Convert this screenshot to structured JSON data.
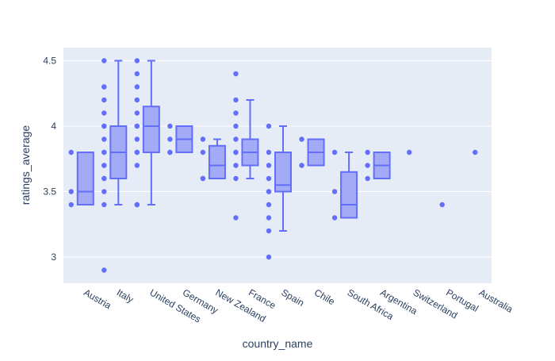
{
  "chart_data": {
    "type": "box",
    "title": "",
    "xlabel": "country_name",
    "ylabel": "ratings_average",
    "ylim": [
      2.8,
      4.6
    ],
    "yticks": [
      3,
      3.5,
      4,
      4.5
    ],
    "ytick_labels": [
      "3",
      "3.5",
      "4",
      "4.5"
    ],
    "grid": true,
    "legend": "none",
    "colors": {
      "plot_bg": "#e5ecf6",
      "grid": "#ffffff",
      "box_fill": "#a4abf6",
      "box_line": "#636efa",
      "point": "#636efa"
    },
    "categories": [
      "Austria",
      "Italy",
      "United States",
      "Germany",
      "New Zealand",
      "France",
      "Spain",
      "Chile",
      "South Africa",
      "Argentina",
      "Switzerland",
      "Portugal",
      "Australia"
    ],
    "boxes": [
      {
        "category": "Austria",
        "min": 3.4,
        "q1": 3.4,
        "median": 3.5,
        "q3": 3.8,
        "max": 3.8,
        "points": [
          3.8,
          3.5,
          3.4
        ]
      },
      {
        "category": "Italy",
        "min": 3.4,
        "q1": 3.6,
        "median": 3.8,
        "q3": 4.0,
        "max": 4.5,
        "points": [
          4.5,
          4.3,
          4.3,
          4.2,
          4.1,
          4.0,
          4.0,
          3.9,
          3.8,
          3.8,
          3.7,
          3.7,
          3.6,
          3.6,
          3.5,
          3.4,
          2.9
        ]
      },
      {
        "category": "United States",
        "min": 3.4,
        "q1": 3.8,
        "median": 4.0,
        "q3": 4.15,
        "max": 4.5,
        "points": [
          4.5,
          4.4,
          4.3,
          4.2,
          4.1,
          4.0,
          4.0,
          3.9,
          3.8,
          3.8,
          3.7,
          3.4,
          3.4
        ]
      },
      {
        "category": "Germany",
        "min": 3.8,
        "q1": 3.8,
        "median": 3.9,
        "q3": 4.0,
        "max": 4.0,
        "points": [
          4.0,
          3.9,
          3.8,
          3.8
        ]
      },
      {
        "category": "New Zealand",
        "min": 3.6,
        "q1": 3.6,
        "median": 3.7,
        "q3": 3.85,
        "max": 3.9,
        "points": [
          3.9,
          3.8,
          3.6,
          3.6
        ]
      },
      {
        "category": "France",
        "min": 3.6,
        "q1": 3.7,
        "median": 3.8,
        "q3": 3.9,
        "max": 4.2,
        "points": [
          4.4,
          4.2,
          4.1,
          4.0,
          3.9,
          3.8,
          3.8,
          3.7,
          3.6,
          3.3
        ]
      },
      {
        "category": "Spain",
        "min": 3.2,
        "q1": 3.5,
        "median": 3.55,
        "q3": 3.8,
        "max": 4.0,
        "points": [
          4.0,
          3.8,
          3.7,
          3.6,
          3.5,
          3.5,
          3.4,
          3.3,
          3.2,
          3.0
        ]
      },
      {
        "category": "Chile",
        "min": 3.7,
        "q1": 3.7,
        "median": 3.8,
        "q3": 3.9,
        "max": 3.9,
        "points": [
          3.9,
          3.7
        ]
      },
      {
        "category": "South Africa",
        "min": 3.3,
        "q1": 3.3,
        "median": 3.4,
        "q3": 3.65,
        "max": 3.8,
        "points": [
          3.8,
          3.5,
          3.3
        ]
      },
      {
        "category": "Argentina",
        "min": 3.6,
        "q1": 3.6,
        "median": 3.7,
        "q3": 3.8,
        "max": 3.8,
        "points": [
          3.8,
          3.7,
          3.6
        ]
      },
      {
        "category": "Switzerland",
        "min": null,
        "q1": null,
        "median": null,
        "q3": null,
        "max": null,
        "points": [
          3.8
        ]
      },
      {
        "category": "Portugal",
        "min": null,
        "q1": null,
        "median": null,
        "q3": null,
        "max": null,
        "points": [
          3.4
        ]
      },
      {
        "category": "Australia",
        "min": null,
        "q1": null,
        "median": null,
        "q3": null,
        "max": null,
        "points": [
          3.8
        ]
      }
    ]
  }
}
